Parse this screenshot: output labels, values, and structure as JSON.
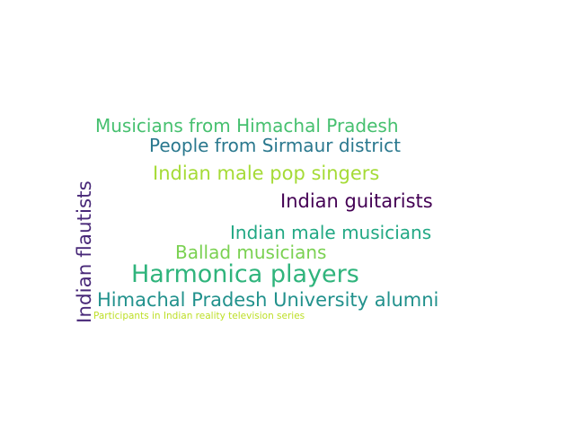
{
  "word_cloud": {
    "words": [
      {
        "text": "Musicians from Himachal Pradesh",
        "color": "#46c06f"
      },
      {
        "text": "People from Sirmaur district",
        "color": "#2a788e"
      },
      {
        "text": "Indian male pop singers",
        "color": "#a5db36"
      },
      {
        "text": "Indian guitarists",
        "color": "#440154"
      },
      {
        "text": "Indian male musicians",
        "color": "#22a884"
      },
      {
        "text": "Ballad musicians",
        "color": "#7ad151"
      },
      {
        "text": "Harmonica players",
        "color": "#2fb47c"
      },
      {
        "text": "Himachal Pradesh University alumni",
        "color": "#21918c"
      },
      {
        "text": "Participants in Indian reality television series",
        "color": "#bddf26"
      },
      {
        "text": "Indian flautists",
        "color": "#482878"
      }
    ]
  }
}
